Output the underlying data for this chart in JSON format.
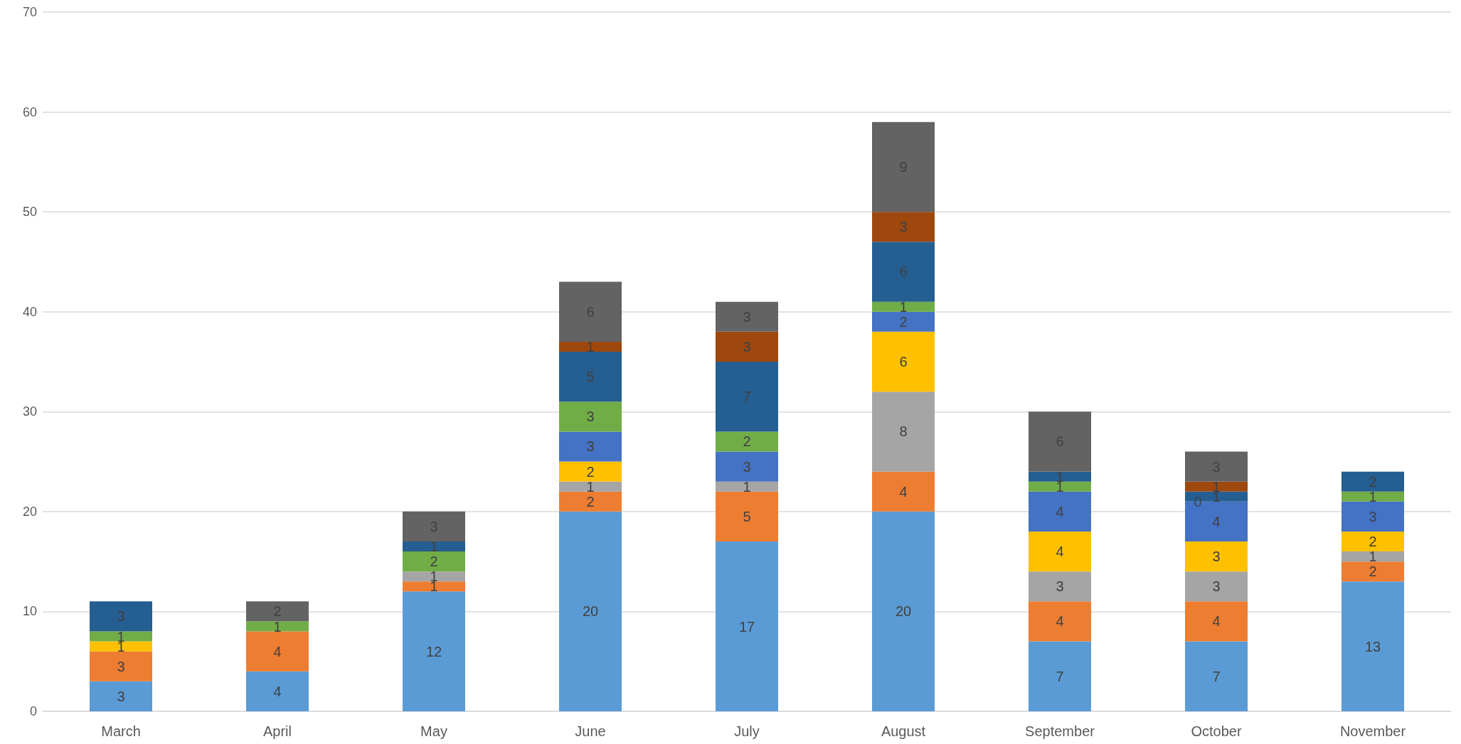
{
  "chart_data": {
    "type": "bar",
    "stacked": true,
    "data_labels": true,
    "grid": "y",
    "annotations": [
      {
        "text": "0",
        "x": "October",
        "y": 21
      }
    ],
    "categories": [
      "March",
      "April",
      "May",
      "June",
      "July",
      "August",
      "September",
      "October",
      "November"
    ],
    "ylim": [
      0,
      70
    ],
    "yticks": [
      0,
      10,
      20,
      30,
      40,
      50,
      60,
      70
    ],
    "series": [
      {
        "color": "#5b9bd5",
        "values": [
          3,
          4,
          12,
          20,
          17,
          20,
          7,
          7,
          13
        ]
      },
      {
        "color": "#ed7d31",
        "values": [
          3,
          4,
          1,
          2,
          5,
          4,
          4,
          4,
          2
        ]
      },
      {
        "color": "#a5a5a5",
        "values": [
          null,
          null,
          1,
          1,
          1,
          8,
          3,
          3,
          1
        ]
      },
      {
        "color": "#ffc000",
        "values": [
          1,
          null,
          null,
          2,
          null,
          6,
          4,
          3,
          2
        ]
      },
      {
        "color": "#4472c4",
        "values": [
          null,
          null,
          null,
          3,
          3,
          2,
          4,
          4,
          3
        ]
      },
      {
        "color": "#70ad47",
        "values": [
          1,
          1,
          2,
          3,
          2,
          1,
          1,
          null,
          1
        ]
      },
      {
        "color": "#255e91",
        "values": [
          3,
          null,
          1,
          5,
          7,
          6,
          1,
          1,
          2
        ]
      },
      {
        "color": "#9e480e",
        "values": [
          null,
          null,
          null,
          1,
          3,
          3,
          null,
          1,
          null
        ]
      },
      {
        "color": "#636363",
        "values": [
          null,
          2,
          3,
          6,
          3,
          9,
          6,
          3,
          null
        ]
      }
    ]
  }
}
